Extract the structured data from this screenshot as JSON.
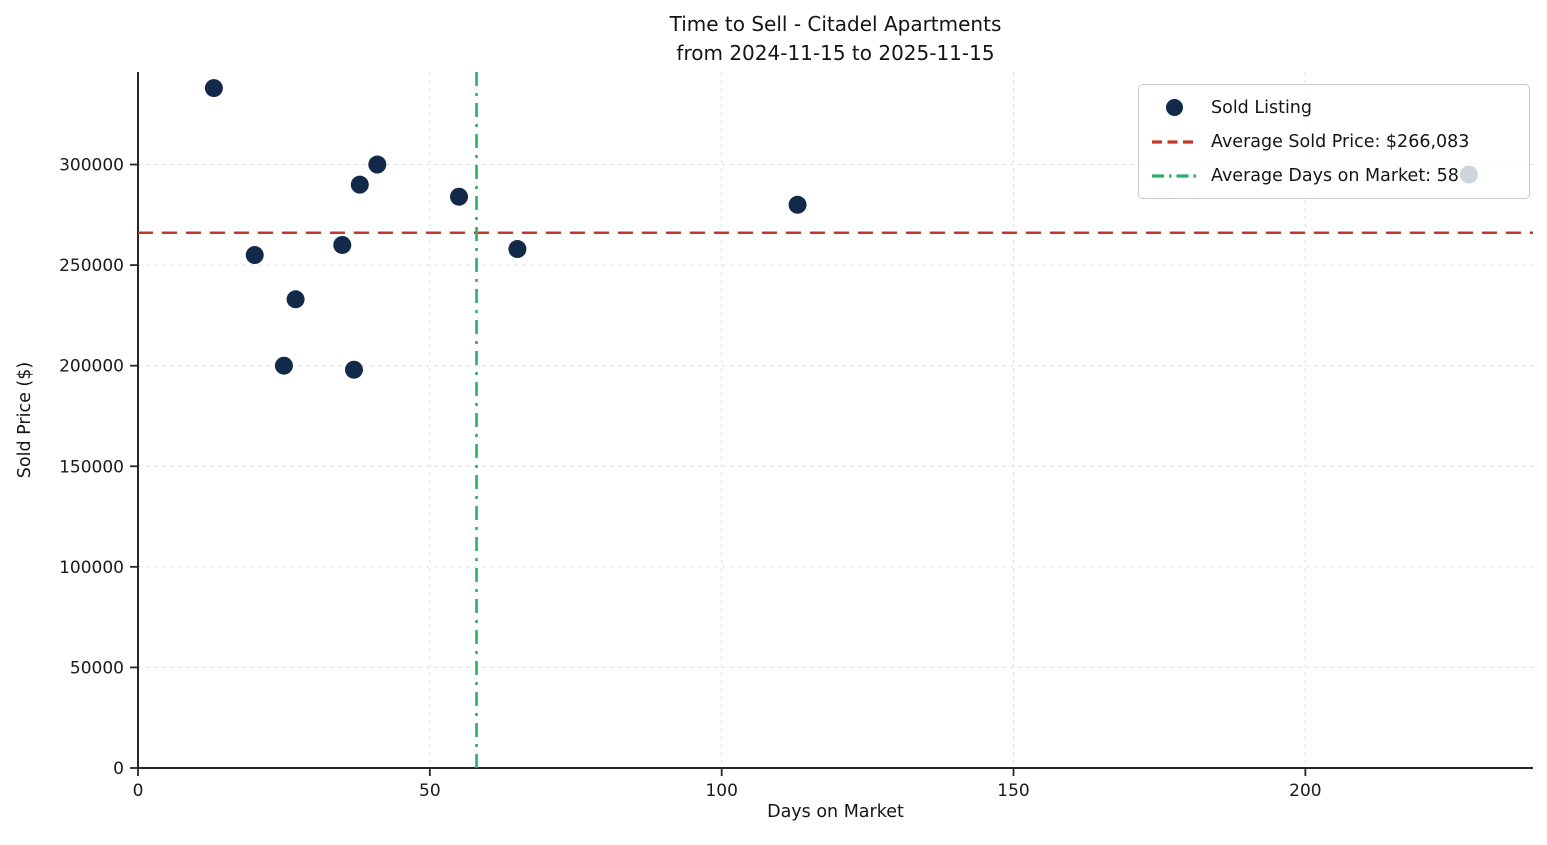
{
  "title": {
    "line1": "Time to Sell - Citadel Apartments",
    "line2": "from 2024-11-15 to 2025-11-15"
  },
  "chart_data": {
    "type": "scatter",
    "title": "Time to Sell - Citadel Apartments from 2024-11-15 to 2025-11-15",
    "xlabel": "Days on Market",
    "ylabel": "Sold Price ($)",
    "xlim": [
      0,
      239
    ],
    "ylim": [
      0,
      346000
    ],
    "x_ticks": [
      0,
      50,
      100,
      150,
      200
    ],
    "y_ticks": [
      0,
      50000,
      100000,
      150000,
      200000,
      250000,
      300000
    ],
    "grid": true,
    "grid_color": "#dcdcdc",
    "spine_color": "#262626",
    "legend_position": "upper right",
    "series": [
      {
        "name": "Sold Listing",
        "color": "#13294A",
        "marker_size": 9,
        "points": [
          [
            13,
            338000
          ],
          [
            20,
            255000
          ],
          [
            25,
            200000
          ],
          [
            27,
            233000
          ],
          [
            35,
            260000
          ],
          [
            37,
            198000
          ],
          [
            38,
            290000
          ],
          [
            41,
            300000
          ],
          [
            55,
            284000
          ],
          [
            65,
            258000
          ],
          [
            113,
            280000
          ],
          [
            228,
            295000
          ]
        ]
      }
    ],
    "reference_lines": [
      {
        "label": "Average Sold Price: $266,083",
        "orientation": "horizontal",
        "value": 266083,
        "color": "#C0392B",
        "style": "dashed"
      },
      {
        "label": "Average Days on Market: 58",
        "orientation": "vertical",
        "value": 58,
        "color": "#2BAE66",
        "style": "dashdot"
      }
    ]
  },
  "legend": {
    "items": [
      {
        "label": "Sold Listing",
        "marker": "dot",
        "color": "#13294A"
      },
      {
        "label": "Average Sold Price: $266,083",
        "marker": "dashed-line",
        "color": "#C0392B"
      },
      {
        "label": "Average Days on Market: 58",
        "marker": "dashdot-line",
        "color": "#2BAE66"
      }
    ]
  }
}
